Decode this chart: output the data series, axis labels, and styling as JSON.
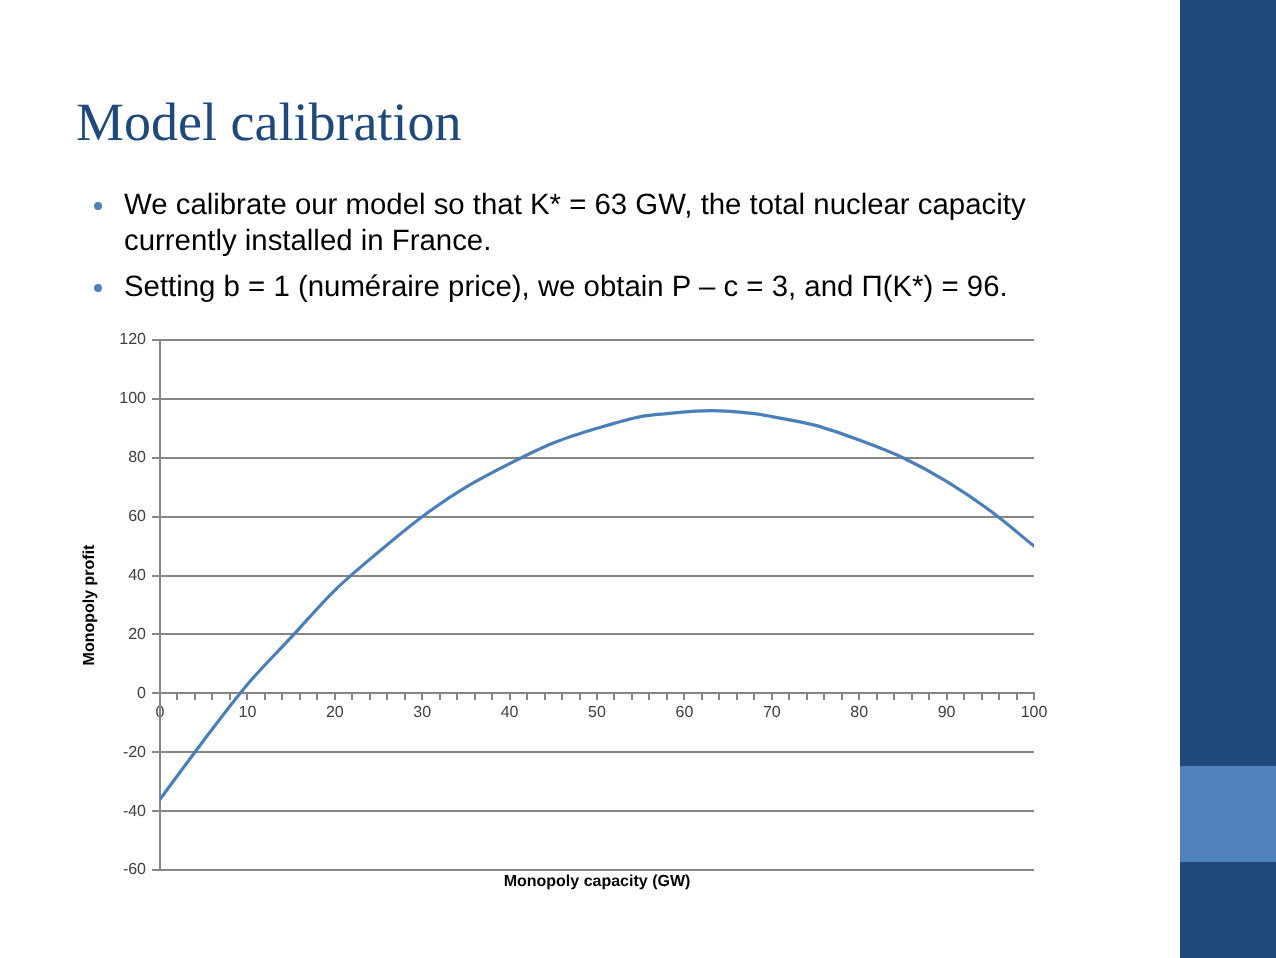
{
  "chart_data": {
    "type": "line",
    "title": "Model calibration",
    "annotations": [
      "We calibrate our model so that K* = 63 GW, the total nuclear capacity currently installed in France.",
      "Setting b = 1 (numéraire price), we obtain P – c = 3, and Π(K*) = 96."
    ],
    "xlabel": "Monopoly capacity (GW)",
    "ylabel": "Monopoly profit",
    "x": [
      0,
      5,
      10,
      15,
      20,
      25,
      30,
      35,
      40,
      45,
      50,
      55,
      58,
      63,
      68,
      70,
      75,
      80,
      85,
      90,
      95,
      100
    ],
    "series": [
      {
        "color": "#4a7ebb",
        "values": [
          -36,
          -16,
          3,
          19,
          35,
          48,
          60,
          70,
          78,
          85,
          90,
          94,
          95,
          96,
          95,
          94,
          91,
          86,
          80,
          72,
          62,
          50
        ]
      }
    ],
    "xlim": [
      0,
      100
    ],
    "xticks": [
      0,
      {
        "value": 2,
        "label": null
      },
      {
        "value": 4,
        "label": null
      },
      {
        "value": 6,
        "label": null
      },
      {
        "value": 8,
        "label": null
      },
      10,
      {
        "value": 12,
        "label": null
      },
      {
        "value": 14,
        "label": null
      },
      {
        "value": 16,
        "label": null
      },
      {
        "value": 18,
        "label": null
      },
      20,
      {
        "value": 22,
        "label": null
      },
      {
        "value": 24,
        "label": null
      },
      {
        "value": 26,
        "label": null
      },
      {
        "value": 28,
        "label": null
      },
      30,
      {
        "value": 32,
        "label": null
      },
      {
        "value": 34,
        "label": null
      },
      {
        "value": 36,
        "label": null
      },
      {
        "value": 38,
        "label": null
      },
      40,
      {
        "value": 42,
        "label": null
      },
      {
        "value": 44,
        "label": null
      },
      {
        "value": 46,
        "label": null
      },
      {
        "value": 48,
        "label": null
      },
      50,
      {
        "value": 52,
        "label": null
      },
      {
        "value": 54,
        "label": null
      },
      {
        "value": 56,
        "label": null
      },
      {
        "value": 58,
        "label": null
      },
      60,
      {
        "value": 62,
        "label": null
      },
      {
        "value": 64,
        "label": null
      },
      {
        "value": 66,
        "label": null
      },
      {
        "value": 68,
        "label": null
      },
      70,
      {
        "value": 72,
        "label": null
      },
      {
        "value": 74,
        "label": null
      },
      {
        "value": 76,
        "label": null
      },
      {
        "value": 78,
        "label": null
      },
      80,
      {
        "value": 82,
        "label": null
      },
      {
        "value": 84,
        "label": null
      },
      {
        "value": 86,
        "label": null
      },
      {
        "value": 88,
        "label": null
      },
      90,
      {
        "value": 92,
        "label": null
      },
      {
        "value": 94,
        "label": null
      },
      {
        "value": 96,
        "label": null
      },
      {
        "value": 98,
        "label": null
      },
      100
    ],
    "ylim": [
      -60,
      120
    ],
    "yticks": [
      -60,
      -40,
      -20,
      0,
      20,
      40,
      60,
      80,
      100,
      120
    ],
    "grid": "y",
    "marker": "none",
    "line_style": "solid"
  }
}
